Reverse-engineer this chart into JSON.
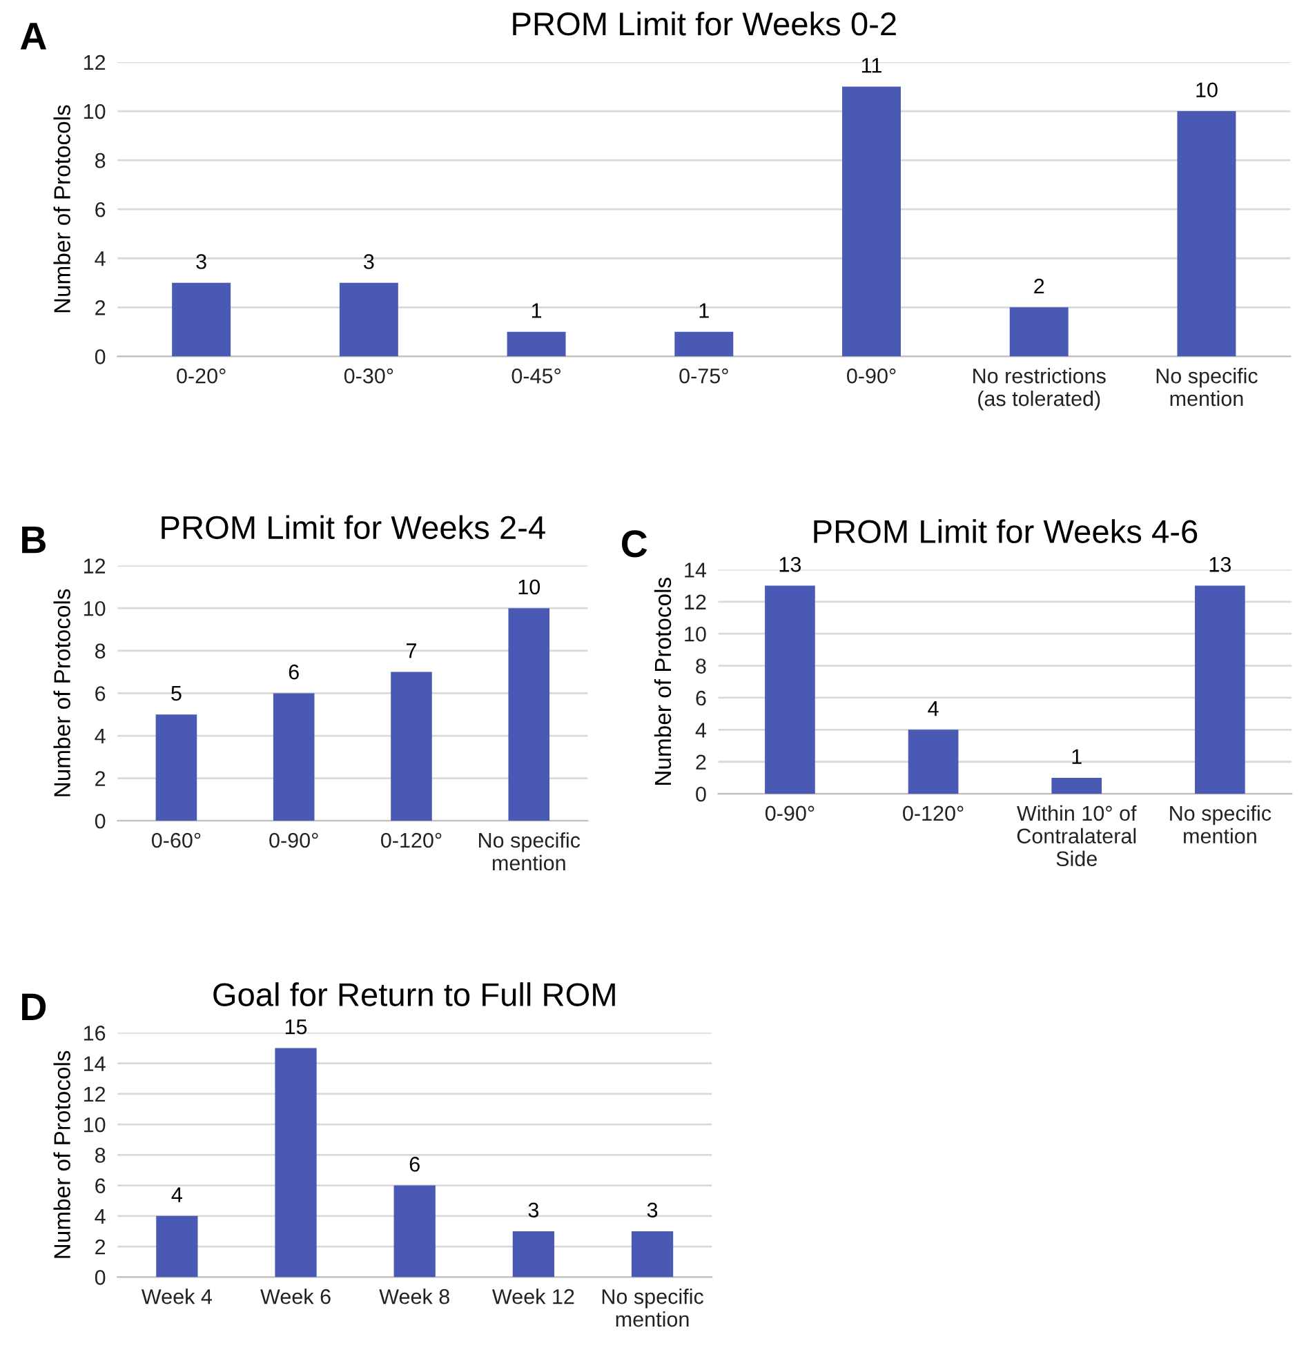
{
  "chart_data": [
    {
      "type": "bar",
      "title": "PROM Limit for Weeks 0-2",
      "ylabel": "Number of Protocols",
      "annotations": [
        "A"
      ],
      "categories": [
        "0-20°",
        "0-30°",
        "0-45°",
        "0-75°",
        "0-90°",
        "No restrictions\n(as tolerated)",
        "No specific\nmention"
      ],
      "values": [
        3,
        3,
        1,
        1,
        11,
        2,
        10
      ],
      "color": "#4a5ab4",
      "ylim": [
        0,
        12
      ],
      "yticks": [
        0,
        2,
        4,
        6,
        8,
        10,
        12
      ],
      "grid": "y",
      "data_labels": true
    },
    {
      "type": "bar",
      "title": "PROM Limit for Weeks 2-4",
      "ylabel": "Number of Protocols",
      "annotations": [
        "B"
      ],
      "categories": [
        "0-60°",
        "0-90°",
        "0-120°",
        "No specific\nmention"
      ],
      "values": [
        5,
        6,
        7,
        10
      ],
      "color": "#4a5ab4",
      "ylim": [
        0,
        12
      ],
      "yticks": [
        0,
        2,
        4,
        6,
        8,
        10,
        12
      ],
      "grid": "y",
      "data_labels": true
    },
    {
      "type": "bar",
      "title": "PROM Limit for Weeks 4-6",
      "ylabel": "Number of Protocols",
      "annotations": [
        "C"
      ],
      "categories": [
        "0-90°",
        "0-120°",
        "Within 10° of\nContralateral\nSide",
        "No specific\nmention"
      ],
      "values": [
        13,
        4,
        1,
        13
      ],
      "color": "#4a5ab4",
      "ylim": [
        0,
        14
      ],
      "yticks": [
        0,
        2,
        4,
        6,
        8,
        10,
        12,
        14
      ],
      "grid": "y",
      "data_labels": true
    },
    {
      "type": "bar",
      "title": "Goal for Return to Full ROM",
      "ylabel": "Number of Protocols",
      "annotations": [
        "D"
      ],
      "categories": [
        "Week 4",
        "Week 6",
        "Week 8",
        "Week 12",
        "No specific\nmention"
      ],
      "values": [
        4,
        15,
        6,
        3,
        3
      ],
      "color": "#4a5ab4",
      "ylim": [
        0,
        16
      ],
      "yticks": [
        0,
        2,
        4,
        6,
        8,
        10,
        12,
        14,
        16
      ],
      "grid": "y",
      "data_labels": true
    }
  ]
}
